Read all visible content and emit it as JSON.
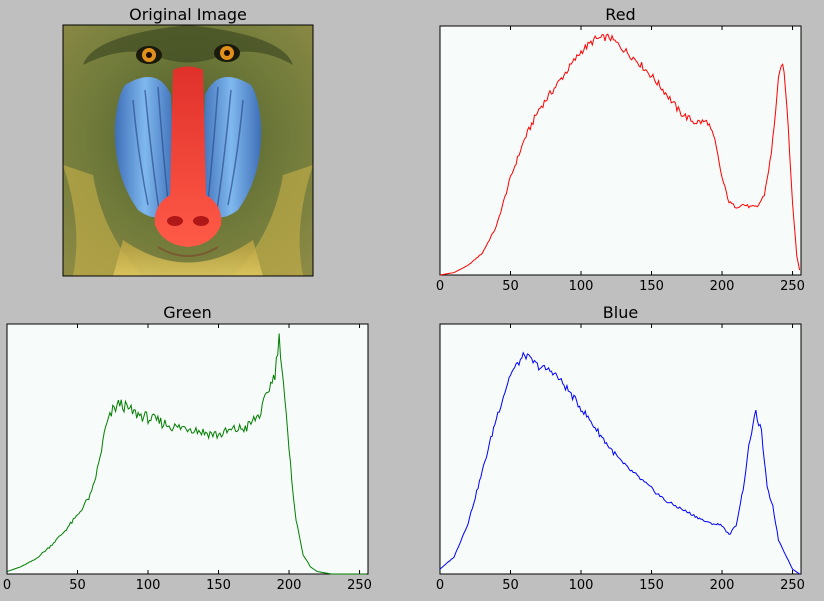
{
  "figure": {
    "background": "#bfbfbf",
    "plot_background": "#f7fbf9"
  },
  "image_panel": {
    "title": "Original Image",
    "subject": "mandrill-face-photo",
    "colors": {
      "fur": "#6f7a3a",
      "cheek_blue": "#5f9fe0",
      "nose_red": "#f0402a",
      "eye_orange": "#e0901a",
      "beard_yellow": "#d8b840"
    }
  },
  "chart_data": [
    {
      "type": "line",
      "title": "Red",
      "color": "#ff0000",
      "xlim": [
        0,
        256
      ],
      "xticks": [
        "0",
        "50",
        "100",
        "150",
        "200",
        "250"
      ],
      "xtick_values": [
        0,
        50,
        100,
        150,
        200,
        250
      ],
      "ylim": [
        0,
        1
      ],
      "yticks_visible": false,
      "x": [
        0,
        10,
        20,
        30,
        40,
        50,
        60,
        70,
        80,
        90,
        100,
        110,
        120,
        130,
        140,
        150,
        160,
        170,
        180,
        190,
        195,
        200,
        205,
        210,
        215,
        220,
        225,
        230,
        235,
        240,
        243,
        246,
        250,
        253,
        255
      ],
      "y": [
        0.0,
        0.01,
        0.04,
        0.09,
        0.2,
        0.4,
        0.56,
        0.68,
        0.76,
        0.84,
        0.92,
        0.97,
        0.98,
        0.93,
        0.88,
        0.82,
        0.75,
        0.67,
        0.63,
        0.63,
        0.55,
        0.4,
        0.3,
        0.28,
        0.29,
        0.28,
        0.28,
        0.33,
        0.5,
        0.8,
        0.88,
        0.7,
        0.3,
        0.08,
        0.02
      ]
    },
    {
      "type": "line",
      "title": "Green",
      "color": "#007f00",
      "xlim": [
        0,
        256
      ],
      "xticks": [
        "0",
        "50",
        "100",
        "150",
        "200",
        "250"
      ],
      "xtick_values": [
        0,
        50,
        100,
        150,
        200,
        250
      ],
      "ylim": [
        0,
        1
      ],
      "yticks_visible": false,
      "x": [
        0,
        10,
        20,
        30,
        40,
        50,
        60,
        65,
        70,
        75,
        80,
        90,
        100,
        110,
        120,
        130,
        140,
        150,
        160,
        170,
        180,
        185,
        190,
        193,
        196,
        200,
        205,
        210,
        215,
        220,
        230,
        240,
        256
      ],
      "y": [
        0.01,
        0.03,
        0.06,
        0.11,
        0.17,
        0.24,
        0.33,
        0.45,
        0.6,
        0.67,
        0.7,
        0.66,
        0.64,
        0.62,
        0.6,
        0.6,
        0.58,
        0.57,
        0.59,
        0.6,
        0.66,
        0.75,
        0.82,
        0.97,
        0.79,
        0.5,
        0.22,
        0.08,
        0.03,
        0.01,
        0.0,
        0.0,
        0.0
      ]
    },
    {
      "type": "line",
      "title": "Blue",
      "color": "#0000ff",
      "xlim": [
        0,
        256
      ],
      "xticks": [
        "0",
        "50",
        "100",
        "150",
        "200",
        "250"
      ],
      "xtick_values": [
        0,
        50,
        100,
        150,
        200,
        250
      ],
      "ylim": [
        0,
        1
      ],
      "yticks_visible": false,
      "x": [
        0,
        10,
        20,
        30,
        40,
        50,
        60,
        70,
        80,
        90,
        100,
        110,
        120,
        130,
        140,
        150,
        160,
        170,
        180,
        190,
        200,
        205,
        210,
        215,
        220,
        224,
        228,
        232,
        236,
        240,
        245,
        250,
        255
      ],
      "y": [
        0.02,
        0.07,
        0.21,
        0.42,
        0.64,
        0.82,
        0.9,
        0.85,
        0.83,
        0.76,
        0.68,
        0.6,
        0.52,
        0.45,
        0.4,
        0.35,
        0.3,
        0.27,
        0.24,
        0.21,
        0.2,
        0.16,
        0.2,
        0.35,
        0.56,
        0.66,
        0.58,
        0.35,
        0.28,
        0.14,
        0.08,
        0.02,
        0.0
      ]
    }
  ]
}
